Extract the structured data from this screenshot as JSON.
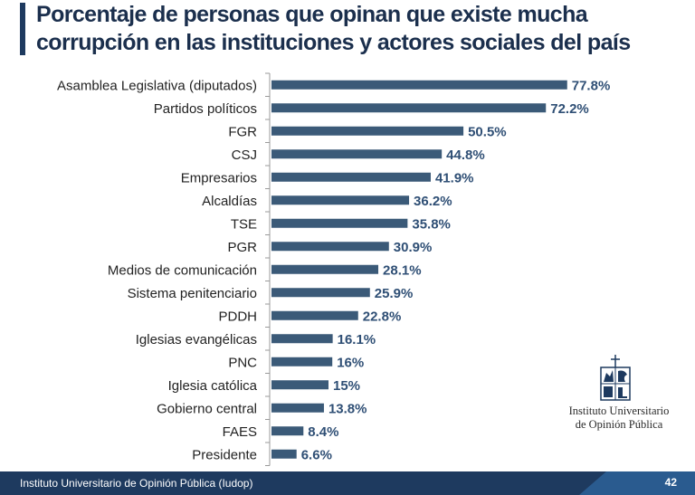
{
  "title": "Porcentaje de personas que opinan que existe mucha corrupción en las instituciones y actores sociales del país",
  "chart_data": {
    "type": "bar",
    "orientation": "horizontal",
    "title": "Porcentaje de personas que opinan que existe mucha corrupción en las instituciones y actores sociales del país",
    "categories": [
      "Asamblea Legislativa (diputados)",
      "Partidos políticos",
      "FGR",
      "CSJ",
      "Empresarios",
      "Alcaldías",
      "TSE",
      "PGR",
      "Medios de comunicación",
      "Sistema penitenciario",
      "PDDH",
      "Iglesias evangélicas",
      "PNC",
      "Iglesia católica",
      "Gobierno central",
      "FAES",
      "Presidente"
    ],
    "values": [
      77.8,
      72.2,
      50.5,
      44.8,
      41.9,
      36.2,
      35.8,
      30.9,
      28.1,
      25.9,
      22.8,
      16.1,
      16,
      15,
      13.8,
      8.4,
      6.6
    ],
    "value_labels": [
      "77.8%",
      "72.2%",
      "50.5%",
      "44.8%",
      "41.9%",
      "36.2%",
      "35.8%",
      "30.9%",
      "28.1%",
      "25.9%",
      "22.8%",
      "16.1%",
      "16%",
      "15%",
      "13.8%",
      "8.4%",
      "6.6%"
    ],
    "xlim": [
      0,
      100
    ],
    "grid": false,
    "bar_color": "#3b5a78",
    "label_color": "#2f4f75"
  },
  "logo": {
    "line1": "Instituto Universitario",
    "line2": "de Opinión Pública"
  },
  "footer": {
    "text": "Instituto Universitario de Opinión Pública (Iudop)",
    "page": "42"
  },
  "colors": {
    "title": "#1b2f4d",
    "accent": "#1e3a5f",
    "footer_accent": "#2a5b8f"
  }
}
